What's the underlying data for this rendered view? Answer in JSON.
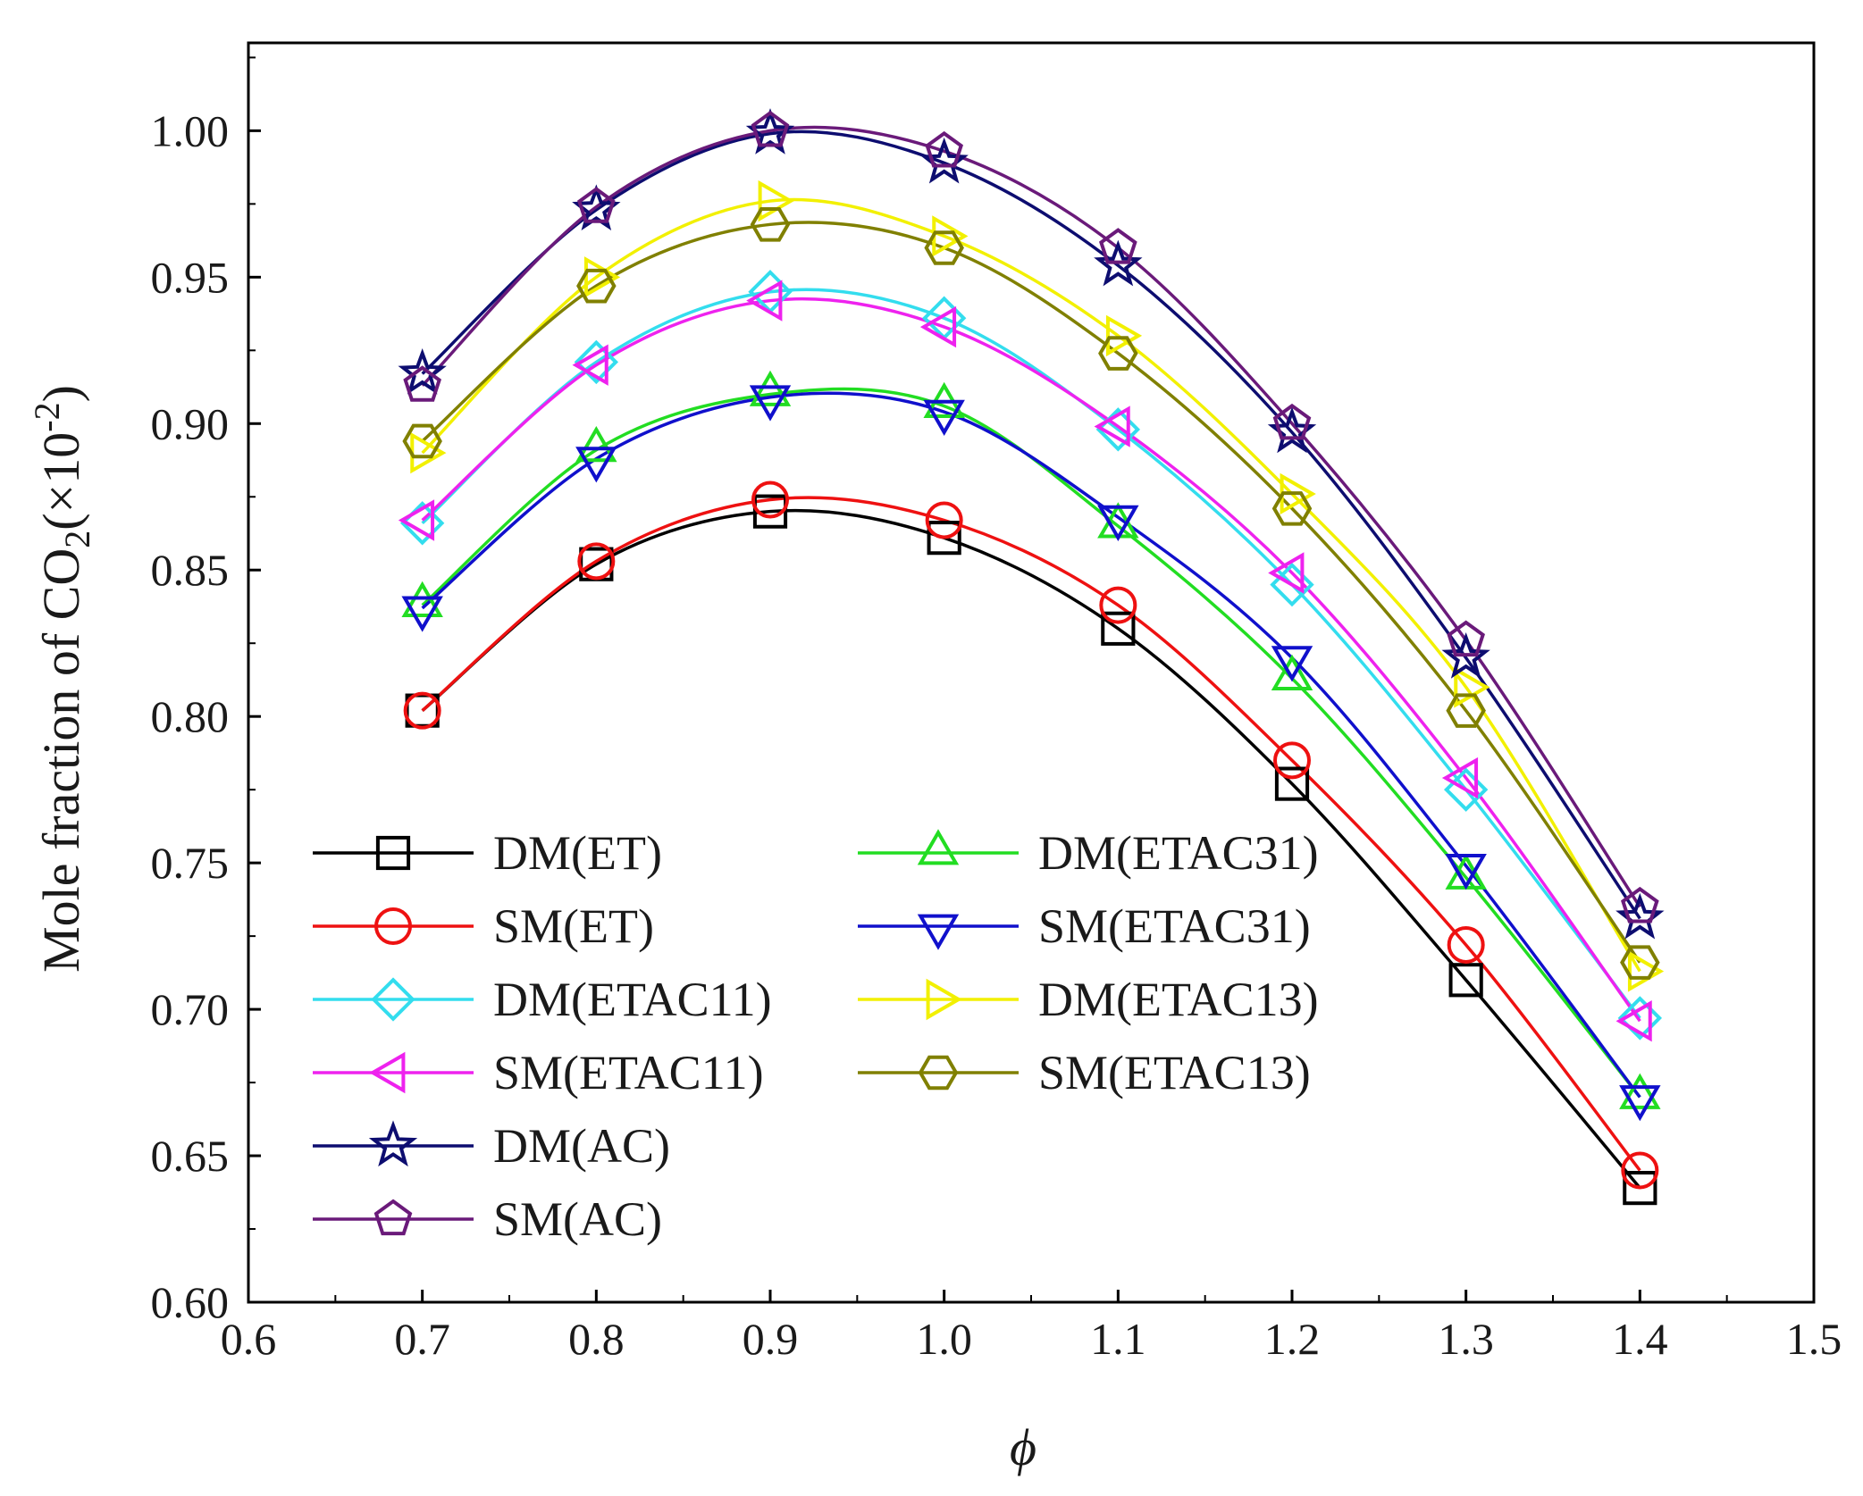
{
  "chart_data": {
    "type": "line",
    "title": "",
    "xlabel": "ϕ",
    "ylabel": {
      "prefix": "Mole fraction of CO",
      "subscript": "2",
      "middle": "(×10",
      "superscript": "-2",
      "suffix": ")"
    },
    "xlim": [
      0.6,
      1.5
    ],
    "ylim": [
      0.6,
      1.03
    ],
    "x_ticks": [
      "0.6",
      "0.7",
      "0.8",
      "0.9",
      "1.0",
      "1.1",
      "1.2",
      "1.3",
      "1.4",
      "1.5"
    ],
    "y_ticks": [
      "0.60",
      "0.65",
      "0.70",
      "0.75",
      "0.80",
      "0.85",
      "0.90",
      "0.95",
      "1.00"
    ],
    "grid": false,
    "legend_position": "bottom-left",
    "x": [
      0.7,
      0.8,
      0.9,
      1.0,
      1.1,
      1.2,
      1.3,
      1.4
    ],
    "series": [
      {
        "name": "DM(ET)",
        "color": "#000000",
        "marker": "square",
        "values": [
          0.802,
          0.852,
          0.87,
          0.861,
          0.83,
          0.777,
          0.71,
          0.639
        ]
      },
      {
        "name": "DM(ETAC31)",
        "color": "#22dd22",
        "marker": "triangle-up",
        "values": [
          0.838,
          0.891,
          0.91,
          0.906,
          0.865,
          0.813,
          0.745,
          0.67
        ]
      },
      {
        "name": "SM(ET)",
        "color": "#ee1111",
        "marker": "circle",
        "values": [
          0.802,
          0.853,
          0.874,
          0.867,
          0.838,
          0.785,
          0.722,
          0.645
        ]
      },
      {
        "name": "SM(ETAC31)",
        "color": "#1010cc",
        "marker": "triangle-down",
        "values": [
          0.837,
          0.888,
          0.909,
          0.904,
          0.868,
          0.82,
          0.749,
          0.67
        ]
      },
      {
        "name": "DM(ETAC11)",
        "color": "#33ddee",
        "marker": "diamond",
        "values": [
          0.866,
          0.921,
          0.945,
          0.936,
          0.898,
          0.845,
          0.775,
          0.697
        ]
      },
      {
        "name": "DM(ETAC13)",
        "color": "#f2f000",
        "marker": "triangle-right",
        "values": [
          0.89,
          0.95,
          0.976,
          0.964,
          0.93,
          0.876,
          0.81,
          0.713
        ]
      },
      {
        "name": "SM(ETAC11)",
        "color": "#ee22ee",
        "marker": "triangle-left",
        "values": [
          0.867,
          0.92,
          0.942,
          0.933,
          0.899,
          0.849,
          0.779,
          0.696
        ]
      },
      {
        "name": "SM(ETAC13)",
        "color": "#808000",
        "marker": "hexagon",
        "values": [
          0.894,
          0.947,
          0.968,
          0.96,
          0.924,
          0.871,
          0.802,
          0.716
        ]
      },
      {
        "name": "DM(AC)",
        "color": "#0d0d70",
        "marker": "star",
        "values": [
          0.917,
          0.973,
          0.999,
          0.989,
          0.954,
          0.897,
          0.82,
          0.731
        ]
      },
      {
        "name": "SM(AC)",
        "color": "#6a1a7a",
        "marker": "pentagon",
        "values": [
          0.913,
          0.974,
          1.0,
          0.993,
          0.96,
          0.9,
          0.826,
          0.735
        ]
      }
    ]
  }
}
